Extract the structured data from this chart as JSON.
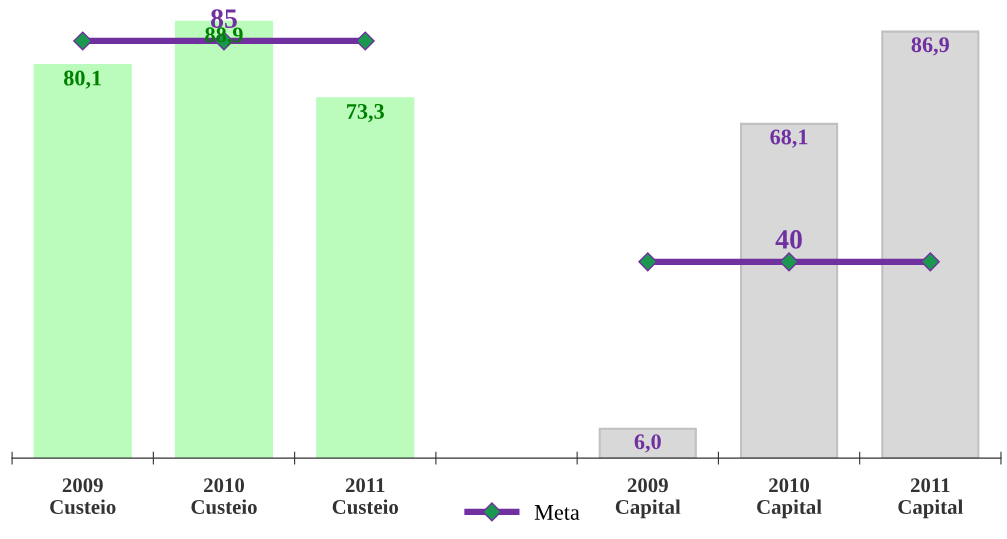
{
  "chart_data": {
    "type": "bar",
    "categories": [
      "2009\nCusteio",
      "2010\nCusteio",
      "2011\nCusteio",
      null,
      "2009\nCapital",
      "2010\nCapital",
      "2011\nCapital"
    ],
    "series": [
      {
        "colors": [
          "#bbfbbb",
          "#bbfbbb",
          "#bbfbbb",
          null,
          "#d8d8d8",
          "#d8d8d8",
          "#d8d8d8"
        ],
        "values": [
          80.1,
          88.9,
          73.3,
          null,
          6.0,
          68.1,
          86.9
        ],
        "value_labels": [
          "80,1",
          "88,9",
          "73,3",
          null,
          "6,0",
          "68,1",
          "86,9"
        ]
      },
      {
        "type": "line",
        "name": "Meta",
        "color": "#7030a0",
        "marker": "diamond",
        "values": [
          85,
          85,
          85,
          null,
          40,
          40,
          40
        ],
        "value_labels": [
          null,
          "85",
          null,
          null,
          null,
          "40",
          null
        ]
      }
    ],
    "tick_labels": "x",
    "grid": false,
    "legend": "bottom"
  }
}
